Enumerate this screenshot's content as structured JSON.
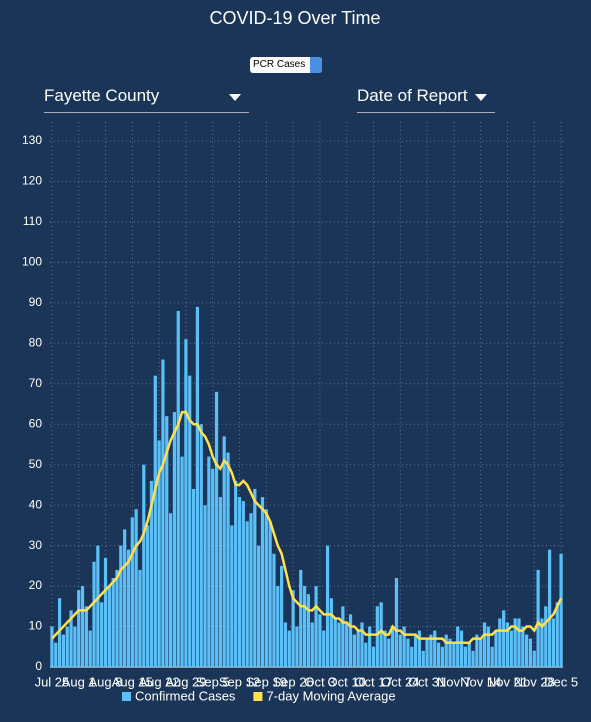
{
  "controls": {
    "metric": "PCR Cases",
    "county": "Fayette County",
    "date_type": "Date of Report"
  },
  "chart_data": {
    "type": "bar",
    "title": "COVID-19 Over Time",
    "categories": [
      "Jul 25",
      null,
      null,
      null,
      null,
      null,
      null,
      "Aug 1",
      null,
      null,
      null,
      null,
      null,
      null,
      "Aug 8",
      null,
      null,
      null,
      null,
      null,
      null,
      "Aug 15",
      null,
      null,
      null,
      null,
      null,
      null,
      "Aug 22",
      null,
      null,
      null,
      null,
      null,
      null,
      "Aug 29",
      null,
      null,
      null,
      null,
      null,
      null,
      "Sep 5",
      null,
      null,
      null,
      null,
      null,
      null,
      "Sep 12",
      null,
      null,
      null,
      null,
      null,
      null,
      "Sep 19",
      null,
      null,
      null,
      null,
      null,
      null,
      "Sep 26",
      null,
      null,
      null,
      null,
      null,
      null,
      "Oct 3",
      null,
      null,
      null,
      null,
      null,
      null,
      "Oct 10",
      null,
      null,
      null,
      null,
      null,
      null,
      "Oct 17",
      null,
      null,
      null,
      null,
      null,
      null,
      "Oct 24",
      null,
      null,
      null,
      null,
      null,
      null,
      "Oct 31",
      null,
      null,
      null,
      null,
      null,
      null,
      "Nov 7",
      null,
      null,
      null,
      null,
      null,
      null,
      "Nov 14",
      null,
      null,
      null,
      null,
      null,
      null,
      "Nov 21",
      null,
      null,
      null,
      null,
      null,
      null,
      "Nov 28",
      null,
      null,
      null,
      null,
      null,
      null,
      "Dec 5"
    ],
    "series": [
      {
        "name": "Confirmed Cases",
        "color": "#5bc0f8",
        "type": "bar",
        "values": [
          10,
          6,
          17,
          8,
          10,
          14,
          10,
          19,
          20,
          15,
          9,
          26,
          30,
          16,
          27,
          20,
          22,
          24,
          30,
          34,
          29,
          37,
          39,
          24,
          50,
          35,
          46,
          72,
          56,
          76,
          62,
          38,
          63,
          88,
          52,
          81,
          72,
          44,
          89,
          60,
          40,
          52,
          49,
          68,
          42,
          57,
          53,
          35,
          46,
          42,
          41,
          36,
          38,
          44,
          30,
          42,
          39,
          36,
          28,
          20,
          25,
          11,
          9,
          19,
          10,
          24,
          20,
          18,
          11,
          20,
          13,
          9,
          30,
          17,
          12,
          11,
          15,
          11,
          13,
          8,
          9,
          11,
          6,
          10,
          5,
          15,
          16,
          9,
          7,
          10,
          22,
          8,
          10,
          7,
          5,
          8,
          9,
          4,
          7,
          8,
          9,
          6,
          5,
          8,
          7,
          6,
          10,
          9,
          5,
          6,
          4,
          8,
          7,
          11,
          10,
          5,
          9,
          12,
          14,
          11,
          9,
          12,
          12,
          10,
          8,
          7,
          4,
          24,
          12,
          15,
          29,
          12,
          16,
          28
        ]
      },
      {
        "name": "7-day Moving Average",
        "color": "#ffe14d",
        "type": "line",
        "values": [
          7,
          8,
          9,
          10,
          11,
          12,
          13,
          14,
          14,
          14,
          15,
          16,
          17,
          18,
          19,
          20,
          21,
          22,
          24,
          25,
          26,
          28,
          30,
          31,
          33,
          36,
          40,
          44,
          48,
          50,
          53,
          56,
          58,
          60,
          63,
          63,
          61,
          60,
          60,
          58,
          57,
          55,
          52,
          50,
          49,
          51,
          50,
          48,
          45,
          45,
          46,
          45,
          43,
          41,
          40,
          39,
          38,
          36,
          33,
          30,
          28,
          24,
          20,
          17,
          16,
          15,
          15,
          14,
          14,
          15,
          14,
          13,
          13,
          13,
          12,
          12,
          11,
          11,
          10,
          10,
          9,
          9,
          8,
          8,
          8,
          8,
          9,
          8,
          8,
          10,
          9,
          9,
          8,
          8,
          8,
          8,
          7,
          7,
          7,
          7,
          7,
          7,
          7,
          6,
          6,
          6,
          6,
          6,
          6,
          6,
          7,
          7,
          7,
          8,
          8,
          8,
          9,
          9,
          9,
          9,
          10,
          10,
          9,
          9,
          10,
          10,
          9,
          11,
          10,
          11,
          12,
          13,
          15,
          17
        ]
      }
    ],
    "ylim": [
      0,
      130
    ],
    "yticks": [
      0,
      10,
      20,
      30,
      40,
      50,
      60,
      70,
      80,
      90,
      100,
      110,
      120,
      130
    ],
    "grid": true
  }
}
